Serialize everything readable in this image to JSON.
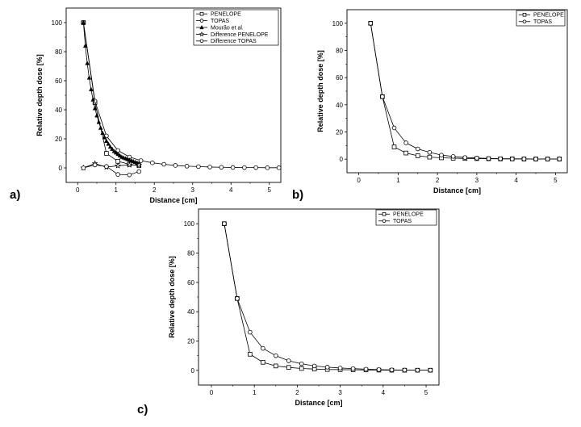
{
  "chart_data": [
    {
      "id": "a",
      "panel_label": "a)",
      "type": "line",
      "xlabel": "Distance [cm]",
      "ylabel": "Relative depth dose [%]",
      "xlim": [
        -0.3,
        5.3
      ],
      "ylim": [
        -10,
        110
      ],
      "xticks": [
        0,
        1,
        2,
        3,
        4,
        5
      ],
      "yticks": [
        0,
        20,
        40,
        60,
        80,
        100
      ],
      "legend_position": "top-right",
      "series": [
        {
          "name": "PENELOPE",
          "marker": "square",
          "x": [
            0.15,
            0.45,
            0.75,
            1.05,
            1.35,
            1.6
          ],
          "y": [
            100,
            45,
            10,
            4.5,
            2.5,
            1.5
          ]
        },
        {
          "name": "TOPAS",
          "marker": "circle",
          "x": [
            0.15,
            0.45,
            0.75,
            1.05,
            1.35,
            1.65,
            1.95,
            2.25,
            2.55,
            2.85,
            3.15,
            3.45,
            3.75,
            4.05,
            4.35,
            4.65,
            4.95,
            5.25
          ],
          "y": [
            100,
            46,
            22,
            12,
            7.5,
            5,
            3.5,
            2.5,
            1.7,
            1.2,
            0.9,
            0.6,
            0.4,
            0.3,
            0.2,
            0.2,
            0.1,
            0.1
          ]
        },
        {
          "name": "Mourão et al.",
          "marker": "filled-triangle",
          "x": [
            0.15,
            0.2,
            0.25,
            0.3,
            0.35,
            0.4,
            0.45,
            0.5,
            0.55,
            0.6,
            0.65,
            0.7,
            0.75,
            0.8,
            0.85,
            0.9,
            0.95,
            1.0,
            1.05,
            1.1,
            1.15,
            1.2,
            1.25,
            1.3,
            1.35,
            1.4,
            1.45,
            1.5,
            1.55,
            1.6
          ],
          "y": [
            100,
            84,
            72,
            62,
            54,
            47,
            41,
            36,
            31.5,
            27.5,
            24,
            21,
            18.5,
            16.5,
            14.5,
            13,
            11.5,
            10.5,
            9.5,
            8.5,
            7.5,
            7,
            6.5,
            6,
            5.5,
            5,
            4.5,
            4,
            3.5,
            3.2
          ]
        },
        {
          "name": "Difference PENELOPE",
          "marker": "star",
          "x": [
            0.15,
            0.45,
            0.75,
            1.05,
            1.35,
            1.6
          ],
          "y": [
            0,
            3,
            0.5,
            1.5,
            2,
            2
          ]
        },
        {
          "name": "Difference TOPAS",
          "marker": "circle",
          "x": [
            0.15,
            0.45,
            0.75,
            1.05,
            1.35,
            1.6
          ],
          "y": [
            0,
            2,
            1,
            -4.5,
            -4.8,
            -2.5
          ]
        }
      ]
    },
    {
      "id": "b",
      "panel_label": "b)",
      "type": "line",
      "xlabel": "Distance [cm]",
      "ylabel": "Relative depth dose [%]",
      "xlim": [
        -0.3,
        5.3
      ],
      "ylim": [
        -10,
        110
      ],
      "xticks": [
        0,
        1,
        2,
        3,
        4,
        5
      ],
      "yticks": [
        0,
        20,
        40,
        60,
        80,
        100
      ],
      "legend_position": "top-right",
      "series": [
        {
          "name": "PENELOPE",
          "marker": "square",
          "x": [
            0.3,
            0.6,
            0.9,
            1.2,
            1.5,
            1.8,
            2.1,
            2.4,
            2.7,
            3.0,
            3.3,
            3.6,
            3.9,
            4.2,
            4.5,
            4.8,
            5.1
          ],
          "y": [
            100,
            46,
            9,
            4.5,
            2.5,
            1.5,
            1,
            0.7,
            0.5,
            0.4,
            0.3,
            0.2,
            0.2,
            0.1,
            0.1,
            0.1,
            0.1
          ]
        },
        {
          "name": "TOPAS",
          "marker": "circle",
          "x": [
            0.3,
            0.6,
            0.9,
            1.2,
            1.5,
            1.8,
            2.1,
            2.4,
            2.7,
            3.0,
            3.3,
            3.6,
            3.9,
            4.2,
            4.5,
            4.8,
            5.1
          ],
          "y": [
            100,
            46,
            23,
            12,
            7.5,
            5,
            3,
            2,
            1.2,
            0.8,
            0.5,
            0.3,
            0.2,
            0.2,
            0.1,
            0.1,
            0.1
          ]
        }
      ]
    },
    {
      "id": "c",
      "panel_label": "c)",
      "type": "line",
      "xlabel": "Distance [cm]",
      "ylabel": "Relative depth dose [%]",
      "xlim": [
        -0.3,
        5.3
      ],
      "ylim": [
        -10,
        110
      ],
      "xticks": [
        0,
        1,
        2,
        3,
        4,
        5
      ],
      "yticks": [
        0,
        20,
        40,
        60,
        80,
        100
      ],
      "legend_position": "top-right",
      "series": [
        {
          "name": "PENELOPE",
          "marker": "square",
          "x": [
            0.3,
            0.6,
            0.9,
            1.2,
            1.5,
            1.8,
            2.1,
            2.4,
            2.7,
            3.0,
            3.3,
            3.6,
            3.9,
            4.2,
            4.5,
            4.8,
            5.1
          ],
          "y": [
            100,
            49,
            11,
            5.5,
            3,
            2,
            1.3,
            0.9,
            0.6,
            0.5,
            0.4,
            0.3,
            0.2,
            0.1,
            0.1,
            0.1,
            0.1
          ]
        },
        {
          "name": "TOPAS",
          "marker": "circle",
          "x": [
            0.3,
            0.6,
            0.9,
            1.2,
            1.5,
            1.8,
            2.1,
            2.4,
            2.7,
            3.0,
            3.3,
            3.6,
            3.9,
            4.2,
            4.5,
            4.8,
            5.1
          ],
          "y": [
            100,
            49,
            26,
            15,
            10,
            6.5,
            4.5,
            3,
            2.2,
            1.6,
            1.2,
            0.8,
            0.5,
            0.3,
            0.2,
            0.1,
            0.1
          ]
        }
      ]
    }
  ]
}
